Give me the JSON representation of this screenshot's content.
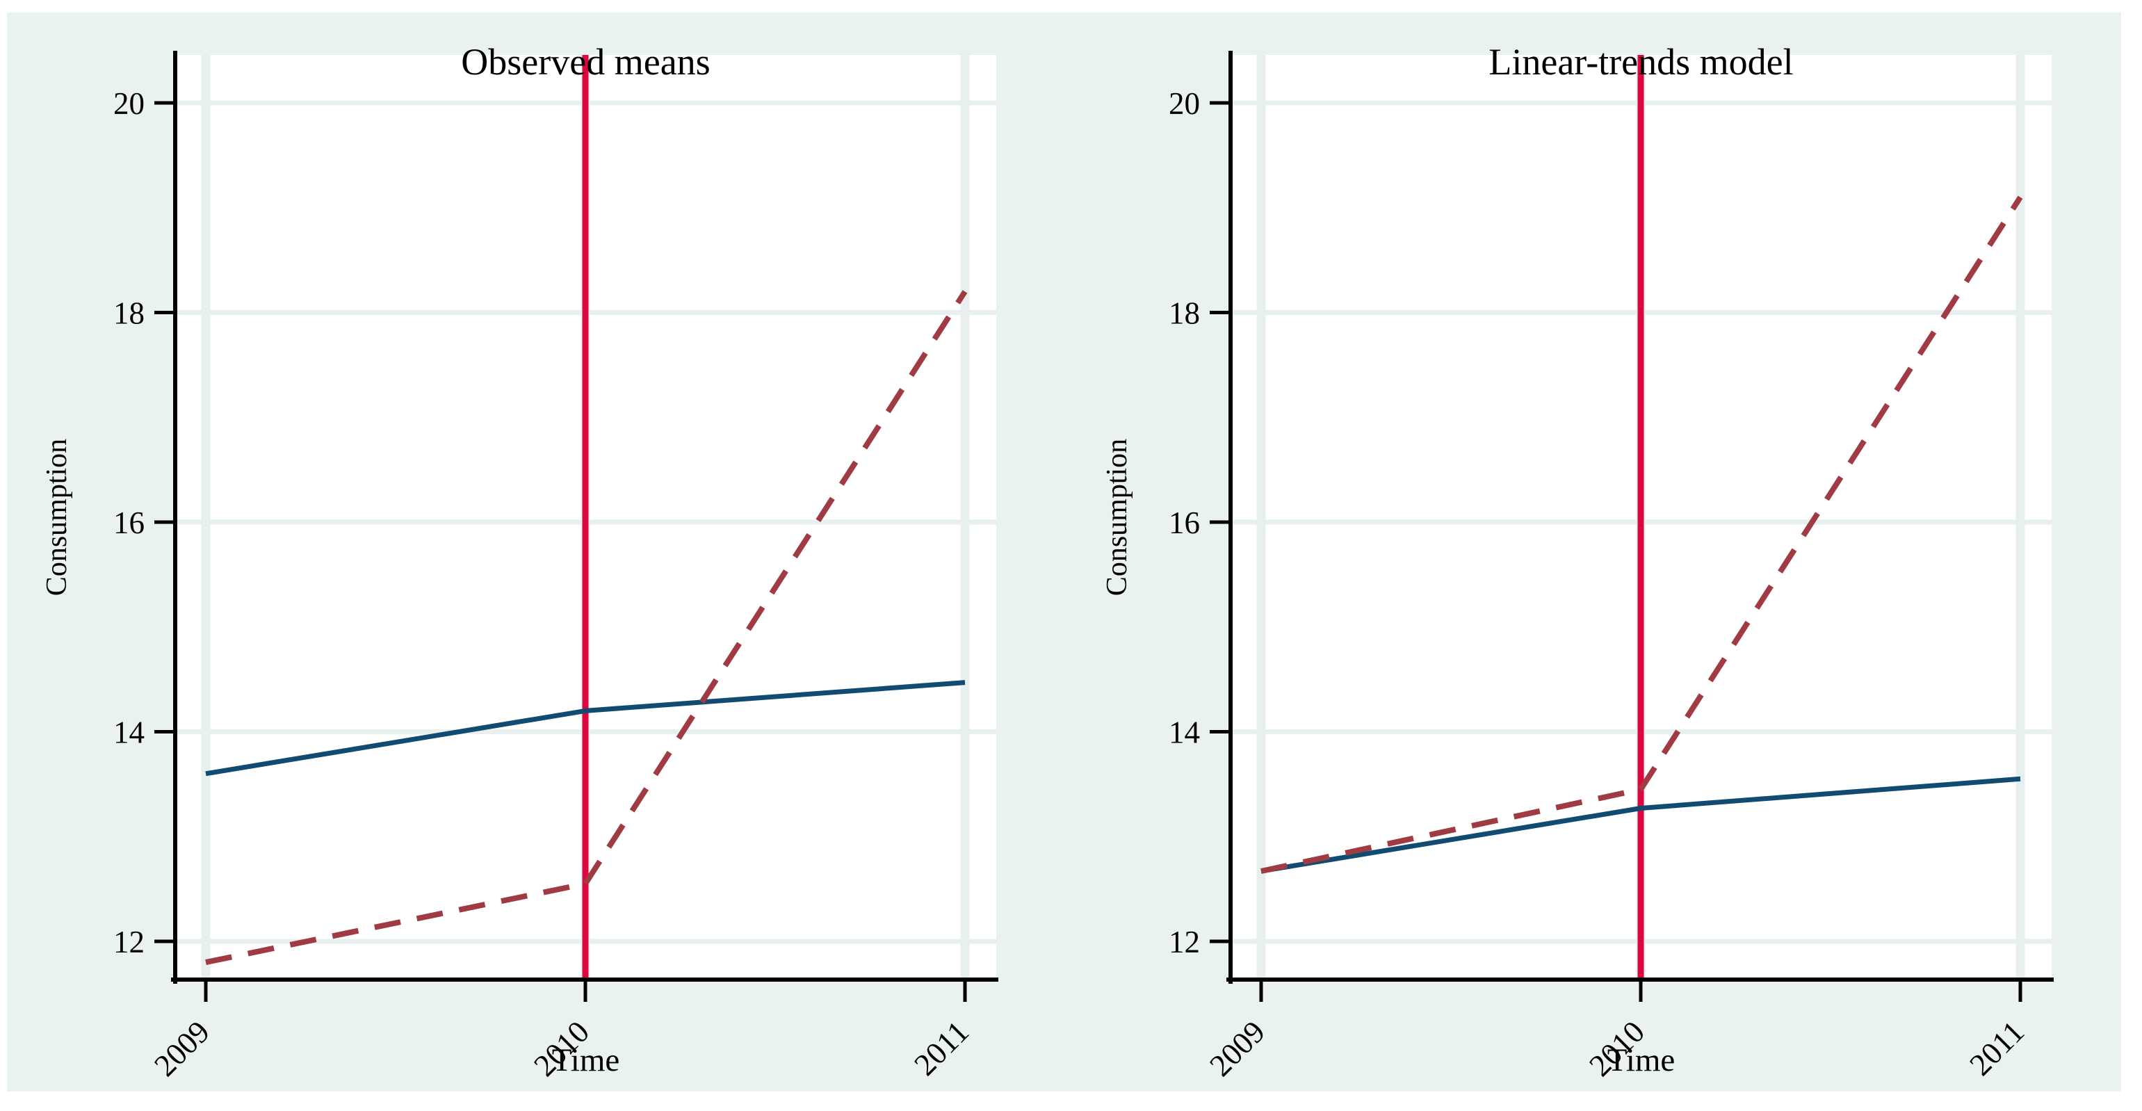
{
  "figure": {
    "background_color": "#e9f2f1",
    "plot_background_color": "#ffffff",
    "grid_color": "#e7f0ef",
    "axis_color": "#000000",
    "title_color": "#1d3455",
    "tick_label_color": "#000000"
  },
  "chart_data": [
    {
      "type": "line",
      "title": "Observed means",
      "xlabel": "Time",
      "ylabel": "Consumption",
      "x_tick_labels": [
        "2009",
        "2010",
        "2011"
      ],
      "y_ticks": [
        12,
        14,
        16,
        18,
        20
      ],
      "ylim": [
        11.6,
        20.5
      ],
      "grid": true,
      "legend": "none",
      "reference_line": {
        "x_label": "2010",
        "orientation": "vertical",
        "color": "#dd0740",
        "style": "solid"
      },
      "series": [
        {
          "name": "solid-navy-line",
          "style": "solid",
          "color": "#124b72",
          "values": [
            13.6,
            14.2,
            14.47
          ]
        },
        {
          "name": "dashed-maroon-line",
          "style": "dashed",
          "color": "#a03a43",
          "values": [
            11.8,
            12.55,
            18.2
          ]
        }
      ]
    },
    {
      "type": "line",
      "title": "Linear-trends model",
      "xlabel": "Time",
      "ylabel": "Consumption",
      "x_tick_labels": [
        "2009",
        "2010",
        "2011"
      ],
      "y_ticks": [
        12,
        14,
        16,
        18,
        20
      ],
      "ylim": [
        11.6,
        20.5
      ],
      "grid": true,
      "legend": "none",
      "reference_line": {
        "x_label": "2010",
        "orientation": "vertical",
        "color": "#dd0740",
        "style": "solid"
      },
      "series": [
        {
          "name": "solid-navy-line",
          "style": "solid",
          "color": "#124b72",
          "values": [
            12.67,
            13.27,
            13.55
          ]
        },
        {
          "name": "dashed-maroon-line",
          "style": "dashed",
          "color": "#a03a43",
          "values": [
            12.67,
            13.45,
            19.1
          ]
        }
      ]
    }
  ]
}
